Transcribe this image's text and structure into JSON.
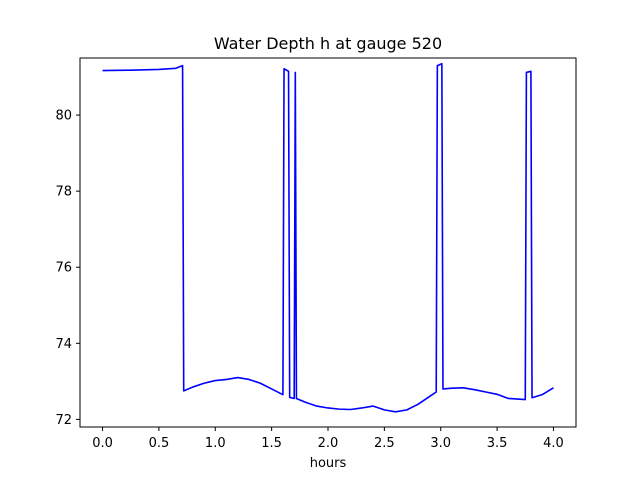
{
  "chart_data": {
    "type": "line",
    "title": "Water Depth h at gauge 520",
    "xlabel": "hours",
    "ylabel": "",
    "xlim": [
      -0.2,
      4.2
    ],
    "ylim": [
      71.8,
      81.5
    ],
    "xticks": [
      0.0,
      0.5,
      1.0,
      1.5,
      2.0,
      2.5,
      3.0,
      3.5,
      4.0
    ],
    "xtick_labels": [
      "0.0",
      "0.5",
      "1.0",
      "1.5",
      "2.0",
      "2.5",
      "3.0",
      "3.5",
      "4.0"
    ],
    "yticks": [
      72,
      74,
      76,
      78,
      80
    ],
    "ytick_labels": [
      "72",
      "74",
      "76",
      "78",
      "80"
    ],
    "grid": false,
    "series": [
      {
        "color": "#0000ff",
        "x": [
          0.0,
          0.25,
          0.5,
          0.65,
          0.71,
          0.72,
          0.8,
          0.9,
          1.0,
          1.1,
          1.2,
          1.3,
          1.4,
          1.5,
          1.6,
          1.61,
          1.65,
          1.66,
          1.7,
          1.71,
          1.72,
          1.8,
          1.9,
          2.0,
          2.1,
          2.2,
          2.3,
          2.4,
          2.5,
          2.6,
          2.7,
          2.8,
          2.9,
          2.96,
          2.97,
          3.01,
          3.02,
          3.1,
          3.2,
          3.3,
          3.4,
          3.5,
          3.6,
          3.75,
          3.76,
          3.8,
          3.81,
          3.9,
          4.0
        ],
        "values": [
          81.17,
          81.18,
          81.2,
          81.23,
          81.3,
          72.75,
          72.85,
          72.95,
          73.02,
          73.05,
          73.1,
          73.05,
          72.95,
          72.8,
          72.65,
          81.22,
          81.15,
          72.58,
          72.55,
          81.12,
          72.55,
          72.45,
          72.35,
          72.3,
          72.27,
          72.26,
          72.3,
          72.35,
          72.25,
          72.2,
          72.25,
          72.4,
          72.6,
          72.72,
          81.3,
          81.35,
          72.8,
          72.82,
          72.83,
          72.78,
          72.72,
          72.66,
          72.55,
          72.52,
          81.12,
          81.15,
          72.57,
          72.65,
          72.83
        ]
      }
    ]
  }
}
